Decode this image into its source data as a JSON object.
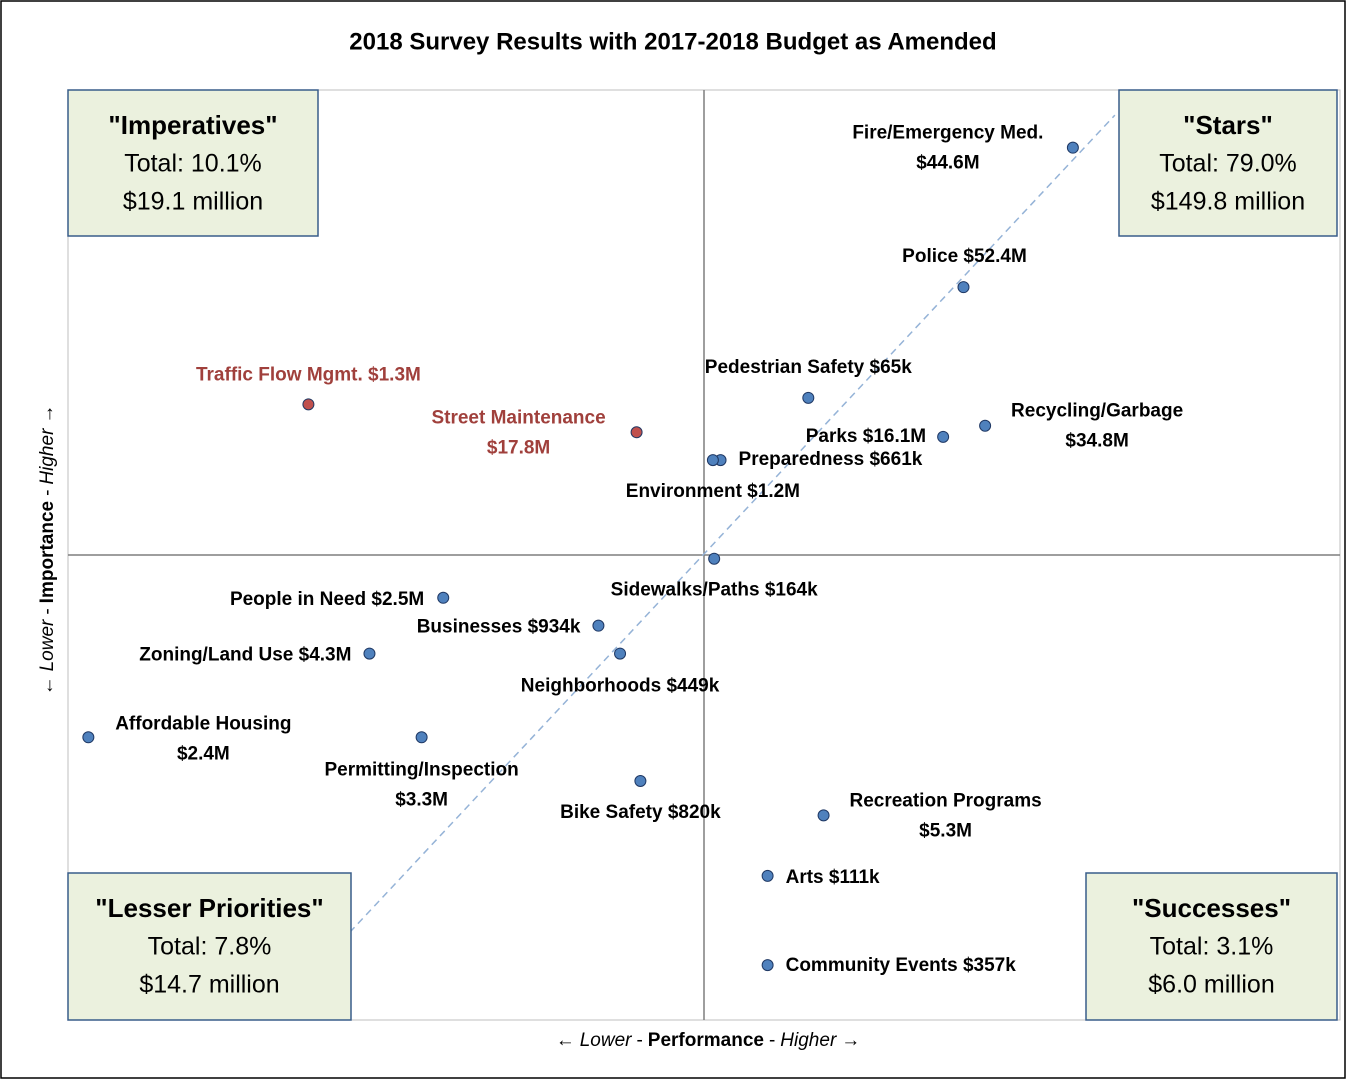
{
  "chart_data": {
    "type": "scatter",
    "title": "2018 Survey Results with 2017-2018 Budget as Amended",
    "xlabel": [
      "←",
      "Lower",
      "-",
      "Performance",
      "-",
      "Higher",
      "→"
    ],
    "ylabel": [
      "←",
      "Lower",
      "-",
      "Importance",
      "-",
      "Higher",
      "→"
    ],
    "xlim": [
      0,
      100
    ],
    "ylim": [
      0,
      100
    ],
    "xdivider": 50,
    "ydivider": 50,
    "trendline": {
      "x": [
        15.7,
        82.3
      ],
      "y": [
        0,
        97.3
      ]
    },
    "quadrants": [
      {
        "title": "\"Imperatives\"",
        "lines": [
          "Total: 10.1%",
          "$19.1 million"
        ]
      },
      {
        "title": "\"Stars\"",
        "lines": [
          "Total: 79.0%",
          "$149.8 million"
        ]
      },
      {
        "title": "\"Lesser Priorities\"",
        "lines": [
          "Total: 7.8%",
          "$14.7 million"
        ]
      },
      {
        "title": "\"Successes\"",
        "lines": [
          "Total: 3.1%",
          "$6.0 million"
        ]
      }
    ],
    "points": [
      {
        "label": [
          "Fire/Emergency Med.",
          "$44.6M"
        ],
        "x": 79.0,
        "y": 93.8,
        "color": "#4f81bd"
      },
      {
        "label": [
          "Police $52.4M"
        ],
        "x": 70.4,
        "y": 78.8,
        "color": "#4f81bd"
      },
      {
        "label": [
          "Pedestrian Safety $65k"
        ],
        "x": 58.2,
        "y": 66.9,
        "color": "#4f81bd"
      },
      {
        "label": [
          "Recycling/Garbage",
          "$34.8M"
        ],
        "x": 72.1,
        "y": 63.9,
        "color": "#4f81bd"
      },
      {
        "label": [
          "Parks $16.1M"
        ],
        "x": 68.8,
        "y": 62.7,
        "color": "#4f81bd"
      },
      {
        "label": [
          "Preparedness $661k"
        ],
        "x": 51.3,
        "y": 60.2,
        "color": "#4f81bd"
      },
      {
        "label": [
          "Environment $1.2M"
        ],
        "x": 50.7,
        "y": 60.2,
        "color": "#4f81bd"
      },
      {
        "label": [
          "Traffic Flow Mgmt. $1.3M"
        ],
        "x": 18.9,
        "y": 66.2,
        "color": "#c0504d"
      },
      {
        "label": [
          "Street Maintenance",
          "$17.8M"
        ],
        "x": 44.7,
        "y": 63.2,
        "color": "#c0504d"
      },
      {
        "label": [
          "Sidewalks/Paths $164k"
        ],
        "x": 50.8,
        "y": 49.6,
        "color": "#4f81bd"
      },
      {
        "label": [
          "People in Need $2.5M"
        ],
        "x": 29.5,
        "y": 45.4,
        "color": "#4f81bd"
      },
      {
        "label": [
          "Businesses $934k"
        ],
        "x": 41.7,
        "y": 42.4,
        "color": "#4f81bd"
      },
      {
        "label": [
          "Zoning/Land Use $4.3M"
        ],
        "x": 23.7,
        "y": 39.4,
        "color": "#4f81bd"
      },
      {
        "label": [
          "Neighborhoods $449k"
        ],
        "x": 43.4,
        "y": 39.4,
        "color": "#4f81bd"
      },
      {
        "label": [
          "Affordable Housing",
          "$2.4M"
        ],
        "x": 1.6,
        "y": 30.4,
        "color": "#4f81bd"
      },
      {
        "label": [
          "Permitting/Inspection",
          "$3.3M"
        ],
        "x": 27.8,
        "y": 30.4,
        "color": "#4f81bd"
      },
      {
        "label": [
          "Bike Safety $820k"
        ],
        "x": 45.0,
        "y": 25.7,
        "color": "#4f81bd"
      },
      {
        "label": [
          "Recreation Programs",
          "$5.3M"
        ],
        "x": 59.4,
        "y": 22.0,
        "color": "#4f81bd"
      },
      {
        "label": [
          "Arts $111k"
        ],
        "x": 55.0,
        "y": 15.5,
        "color": "#4f81bd"
      },
      {
        "label": [
          "Community Events $357k"
        ],
        "x": 55.0,
        "y": 5.9,
        "color": "#4f81bd"
      }
    ]
  }
}
